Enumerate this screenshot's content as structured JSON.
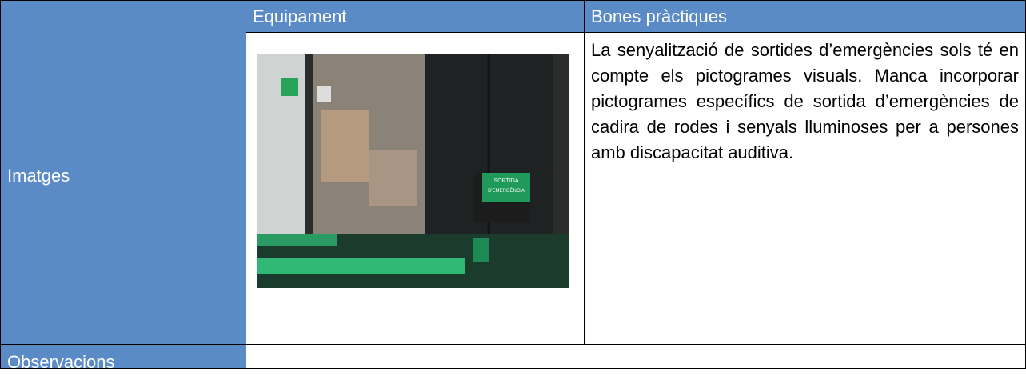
{
  "table": {
    "headers": [
      "Equipament",
      "Bones pràctiques"
    ],
    "rows": [
      {
        "label": "Imatges",
        "image": {
          "sign_text": [
            "SORTIDA",
            "D'EMERGÈNCIA"
          ]
        },
        "text": "La senyalització de sortides d’emergències sols té en compte els pictogrames visuals. Manca incorporar pictogrames específics de sortida d’emergències de cadira de rodes i senyals lluminoses per a persones amb discapacitat auditiva."
      },
      {
        "label": "Observacions",
        "text": ""
      }
    ]
  }
}
